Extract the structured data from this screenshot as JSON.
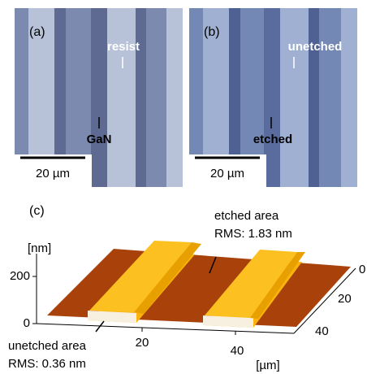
{
  "panel_a": {
    "label": "(a)",
    "resist": "resist",
    "gan": "GaN",
    "scale": "20 µm"
  },
  "panel_b": {
    "label": "(b)",
    "unetched": "unetched",
    "etched": "etched",
    "scale": "20 µm"
  },
  "panel_c": {
    "label": "(c)",
    "etched_title": "etched area",
    "etched_rms": "RMS: 1.83 nm",
    "z_unit": "[nm]",
    "z_ticks": [
      200,
      0
    ],
    "x_ticks": [
      20,
      40
    ],
    "x_unit": "[µm]",
    "y_ticks": [
      0,
      20,
      40
    ],
    "unetched_title": "unetched area",
    "unetched_rms": "RMS: 0.36 nm"
  }
}
